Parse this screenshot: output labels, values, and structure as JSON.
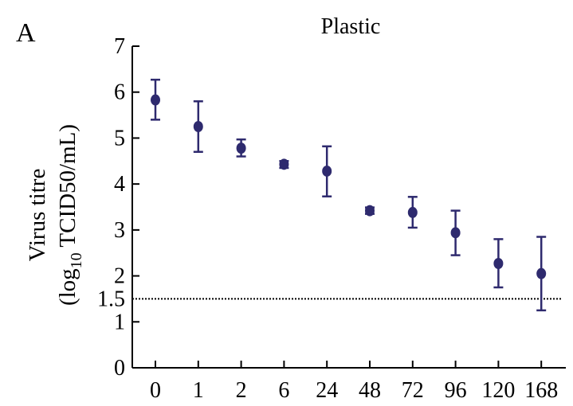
{
  "panel_label": "A",
  "colors": {
    "marker": "#2e2a6e",
    "axis": "#000000",
    "threshold": "#000000"
  },
  "chart_data": {
    "type": "scatter",
    "title": "Plastic",
    "ylabel_line1": "Virus titre",
    "ylabel_line2_prefix": "(log",
    "ylabel_line2_sub": "10",
    "ylabel_line2_suffix": " TCID50/mL)",
    "xlabel": "",
    "categories": [
      "0",
      "1",
      "2",
      "6",
      "24",
      "48",
      "72",
      "96",
      "120",
      "168"
    ],
    "values": [
      5.83,
      5.25,
      4.78,
      4.43,
      4.28,
      3.42,
      3.38,
      2.94,
      2.27,
      2.05
    ],
    "error_low": [
      5.4,
      4.7,
      4.6,
      4.35,
      3.73,
      3.35,
      3.05,
      2.45,
      1.75,
      1.25
    ],
    "error_high": [
      6.27,
      5.8,
      4.97,
      4.5,
      4.82,
      3.49,
      3.72,
      3.42,
      2.8,
      2.85
    ],
    "ylim": [
      0,
      7
    ],
    "yticks": [
      "0",
      "1",
      "2",
      "3",
      "4",
      "5",
      "6",
      "7"
    ],
    "threshold": {
      "value": 1.5,
      "label": "1.5",
      "style": "dotted"
    },
    "grid": false,
    "legend": "none"
  }
}
